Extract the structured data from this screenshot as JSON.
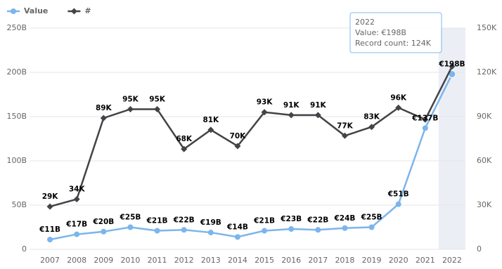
{
  "chart_data": {
    "type": "line",
    "categories": [
      "2007",
      "2008",
      "2009",
      "2010",
      "2011",
      "2012",
      "2013",
      "2014",
      "2015",
      "2016",
      "2017",
      "2018",
      "2019",
      "2020",
      "2021",
      "2022"
    ],
    "series": [
      {
        "name": "Value",
        "color": "#7cb5ec",
        "axis": "y",
        "values": [
          11,
          17,
          20,
          25,
          21,
          22,
          19,
          14,
          21,
          23,
          22,
          24,
          25,
          51,
          137,
          198
        ],
        "value_labels": [
          "€11B",
          "€17B",
          "€20B",
          "€25B",
          "€21B",
          "€22B",
          "€19B",
          "€14B",
          "€21B",
          "€23B",
          "€22B",
          "€24B",
          "€25B",
          "€51B",
          "€137B",
          "€198B"
        ]
      },
      {
        "name": "#",
        "color": "#434348",
        "axis": "y2",
        "values": [
          29,
          34,
          89,
          95,
          95,
          68,
          81,
          70,
          93,
          91,
          91,
          77,
          83,
          96,
          88,
          124
        ],
        "value_labels": [
          "29K",
          "34K",
          "89K",
          "95K",
          "95K",
          "68K",
          "81K",
          "70K",
          "93K",
          "91K",
          "91K",
          "77K",
          "83K",
          "96K",
          null,
          null
        ]
      }
    ],
    "ylim": [
      0,
      250
    ],
    "yticks": [
      0,
      {
        "value": 50,
        "label": "50B"
      },
      {
        "value": 100,
        "label": "100B"
      },
      {
        "value": 150,
        "label": "150B"
      },
      {
        "value": 200,
        "label": "200B"
      },
      {
        "value": 250,
        "label": "250B"
      }
    ],
    "y2lim": [
      0,
      150
    ],
    "y2ticks": [
      0,
      {
        "value": 30,
        "label": "30K"
      },
      {
        "value": 60,
        "label": "60K"
      },
      {
        "value": 90,
        "label": "90K"
      },
      {
        "value": 120,
        "label": "120K"
      },
      {
        "value": 150,
        "label": "150K"
      }
    ],
    "grid": true,
    "legend": "top-left",
    "highlight": 15,
    "tooltip": {
      "title": "2022",
      "lines": [
        "Value: €198B",
        "Record count: 124K"
      ]
    }
  }
}
